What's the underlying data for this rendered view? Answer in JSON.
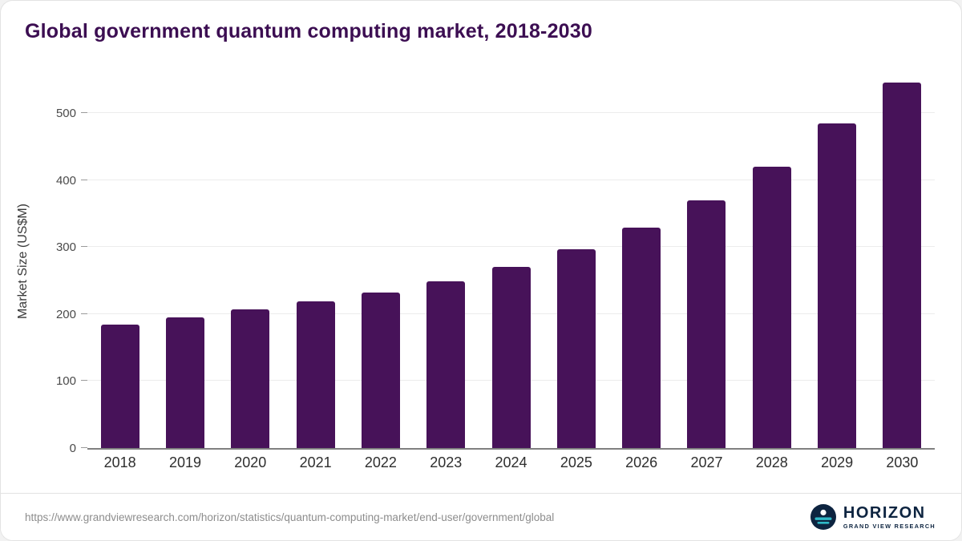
{
  "card": {
    "title": "Global government quantum computing market, 2018-2030"
  },
  "colors": {
    "bar": "#471259",
    "title": "#3c0e52",
    "logo_navy": "#0d2440",
    "logo_teal": "#2fb9c7"
  },
  "chart_data": {
    "type": "bar",
    "title": "Global government quantum computing market, 2018-2030",
    "categories": [
      "2018",
      "2019",
      "2020",
      "2021",
      "2022",
      "2023",
      "2024",
      "2025",
      "2026",
      "2027",
      "2028",
      "2029",
      "2030"
    ],
    "values": [
      184,
      195,
      207,
      219,
      232,
      249,
      270,
      297,
      329,
      370,
      420,
      485,
      546
    ],
    "xlabel": "",
    "ylabel": "Market Size (US$M)",
    "ylim": [
      0,
      560
    ],
    "yticks": [
      0,
      100,
      200,
      300,
      400,
      500
    ],
    "grid": true,
    "legend": "none",
    "bar_color": "#471259"
  },
  "footer": {
    "source_url": "https://www.grandviewresearch.com/horizon/statistics/quantum-computing-market/end-user/government/global",
    "logo": {
      "name": "HORIZON",
      "subtitle": "GRAND VIEW RESEARCH"
    }
  }
}
